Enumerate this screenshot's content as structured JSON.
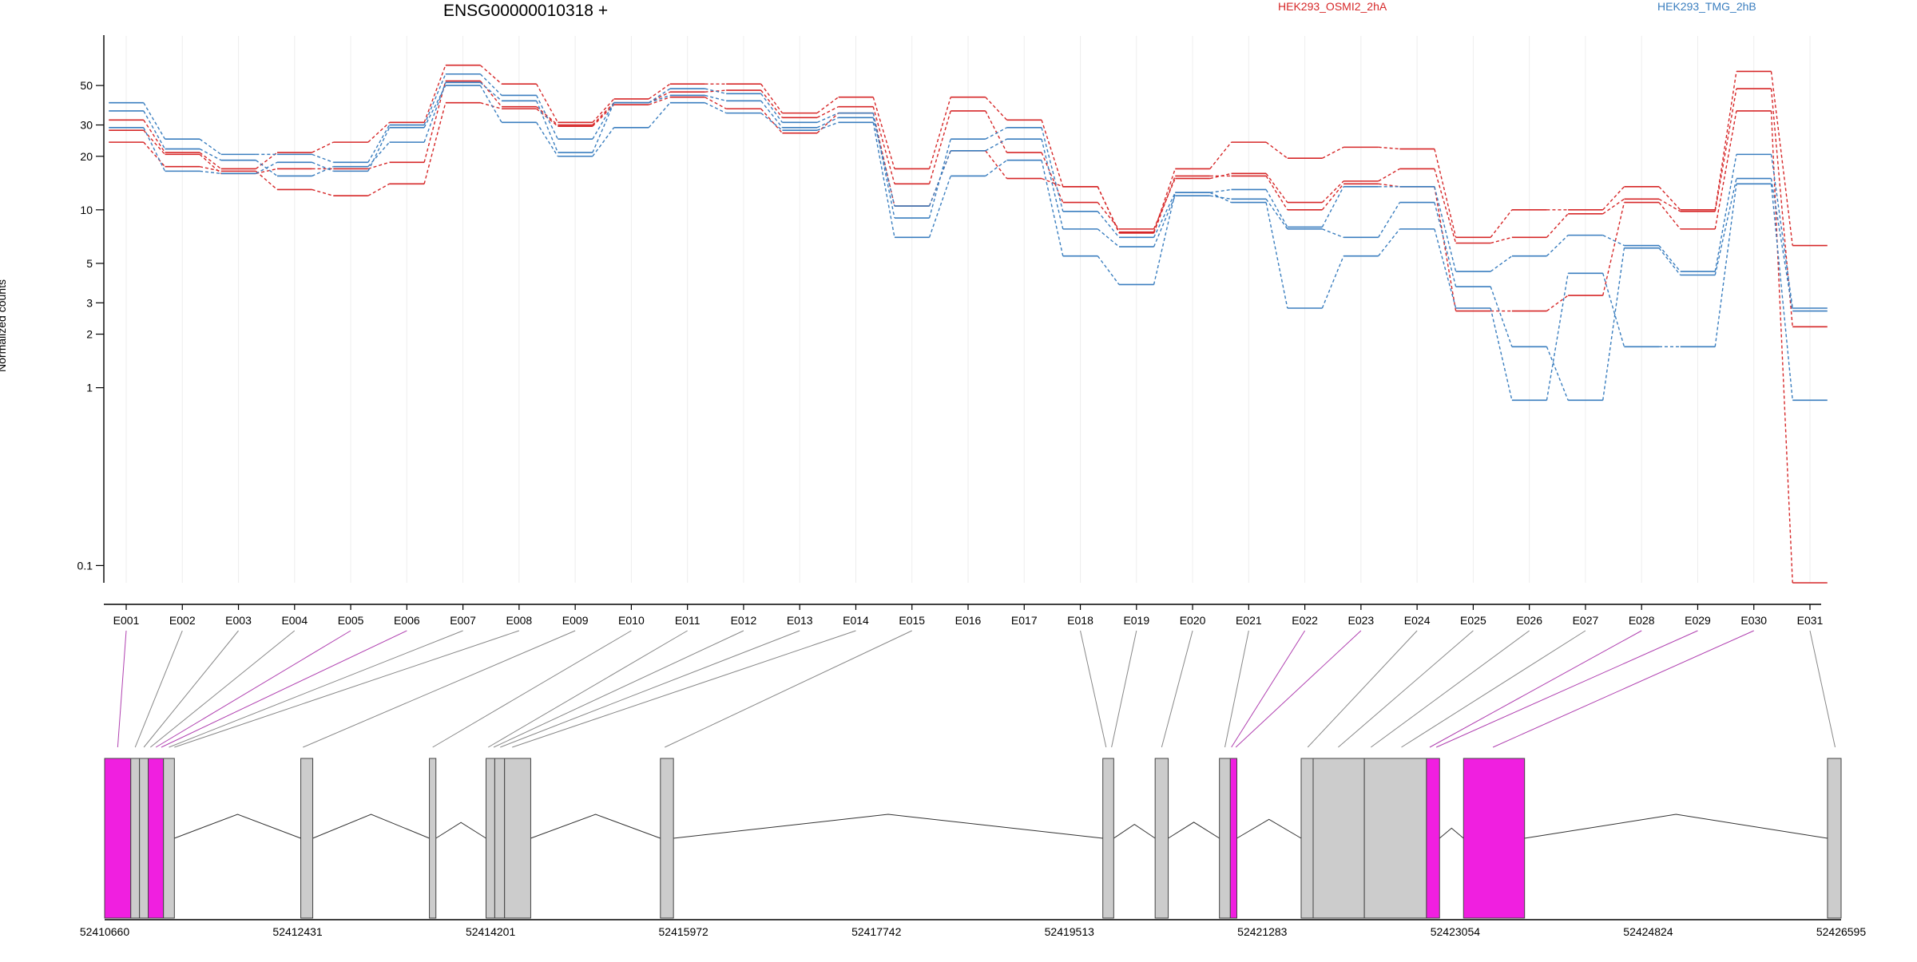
{
  "chart_data": {
    "type": "line",
    "title": "ENSG00000010318 +",
    "ylabel": "Normalized counts",
    "yscale": "log",
    "ylim": [
      0.08,
      95
    ],
    "yticks": [
      0.1,
      1,
      2,
      3,
      5,
      10,
      20,
      30,
      50
    ],
    "ytick_labels": [
      "0.1",
      "1",
      "2",
      "3",
      "5",
      "10",
      "20",
      "30",
      "50"
    ],
    "categories": [
      "E001",
      "E002",
      "E003",
      "E004",
      "E005",
      "E006",
      "E007",
      "E008",
      "E009",
      "E010",
      "E011",
      "E012",
      "E013",
      "E014",
      "E015",
      "E016",
      "E017",
      "E018",
      "E019",
      "E020",
      "E021",
      "E022",
      "E023",
      "E024",
      "E025",
      "E026",
      "E027",
      "E028",
      "E029",
      "E030",
      "E031"
    ],
    "legend": [
      {
        "label": "HEK293_OSMI2_2hA",
        "color": "#d62728"
      },
      {
        "label": "HEK293_TMG_2hB",
        "color": "#3a7ebf"
      }
    ],
    "series": [
      {
        "group": "HEK293_OSMI2_2hA",
        "color": "#d62728",
        "values": [
          32,
          21,
          17,
          21,
          24,
          31,
          65,
          51,
          31,
          42,
          51,
          51,
          35,
          43,
          17,
          43,
          32,
          13.5,
          7.5,
          17,
          24,
          19.5,
          22.5,
          22,
          7,
          10,
          10,
          13.5,
          10,
          60,
          6.3
        ]
      },
      {
        "group": "HEK293_OSMI2_2hA",
        "color": "#d62728",
        "values": [
          28,
          20.5,
          16,
          17,
          17,
          18.5,
          53,
          38,
          30,
          40,
          46,
          47,
          33,
          38,
          14,
          36,
          21,
          11,
          7.8,
          15,
          16,
          11,
          14.5,
          17,
          6.5,
          7,
          9.5,
          11.5,
          9.8,
          48,
          2.2
        ]
      },
      {
        "group": "HEK293_OSMI2_2hA",
        "color": "#d62728",
        "values": [
          24,
          17.5,
          16.5,
          13,
          12,
          14,
          40,
          37,
          29.5,
          39,
          43,
          37,
          27,
          35,
          10.5,
          21.5,
          15,
          13.5,
          7.4,
          15.5,
          15.5,
          10,
          14,
          13.5,
          2.7,
          2.7,
          3.3,
          11,
          7.8,
          36,
          0.08
        ]
      },
      {
        "group": "HEK293_TMG_2hB",
        "color": "#3a7ebf",
        "values": [
          40,
          25,
          20.5,
          20.5,
          18.5,
          30,
          58,
          44,
          25,
          40,
          48,
          45,
          31,
          35,
          9,
          25,
          29,
          9.8,
          7,
          12.5,
          13,
          8,
          13.5,
          13.5,
          4.5,
          5.5,
          7.2,
          6.3,
          4.5,
          20.5,
          2.8
        ]
      },
      {
        "group": "HEK293_TMG_2hB",
        "color": "#3a7ebf",
        "values": [
          36,
          22,
          19,
          15.5,
          17.5,
          24,
          52,
          41,
          21,
          40,
          44,
          41,
          29,
          33,
          10.5,
          21.5,
          25,
          7.8,
          6.2,
          12,
          11.5,
          7.8,
          7,
          11,
          3.7,
          1.7,
          0.85,
          6.1,
          4.3,
          15,
          2.7
        ]
      },
      {
        "group": "HEK293_TMG_2hB",
        "color": "#3a7ebf",
        "values": [
          29,
          16.5,
          16,
          18.5,
          16.5,
          29,
          50,
          31,
          20,
          29,
          40,
          35,
          28,
          31,
          7,
          15.5,
          19,
          5.5,
          3.8,
          12.5,
          11,
          2.8,
          5.5,
          7.8,
          2.8,
          0.85,
          4.4,
          1.7,
          1.7,
          14,
          0.85
        ]
      }
    ],
    "gene_model": {
      "coordinate_labels": [
        "52410660",
        "52412431",
        "52414201",
        "52415972",
        "52417742",
        "52419513",
        "52421283",
        "52423054",
        "52424824",
        "52426595"
      ],
      "coord_min": 52410660,
      "coord_max": 52426595,
      "exons": [
        {
          "start": 52410660,
          "end": 52410900,
          "color": "#f01fe0"
        },
        {
          "start": 52410900,
          "end": 52410980,
          "color": "#cccccc"
        },
        {
          "start": 52410980,
          "end": 52411060,
          "color": "#cccccc"
        },
        {
          "start": 52411060,
          "end": 52411200,
          "color": "#f01fe0"
        },
        {
          "start": 52411200,
          "end": 52411300,
          "color": "#cccccc"
        },
        {
          "start": 52412460,
          "end": 52412570,
          "color": "#cccccc"
        },
        {
          "start": 52413640,
          "end": 52413700,
          "color": "#cccccc"
        },
        {
          "start": 52414160,
          "end": 52414240,
          "color": "#cccccc"
        },
        {
          "start": 52414240,
          "end": 52414330,
          "color": "#cccccc"
        },
        {
          "start": 52414330,
          "end": 52414570,
          "color": "#cccccc"
        },
        {
          "start": 52415760,
          "end": 52415880,
          "color": "#cccccc"
        },
        {
          "start": 52419820,
          "end": 52419920,
          "color": "#cccccc"
        },
        {
          "start": 52420300,
          "end": 52420420,
          "color": "#cccccc"
        },
        {
          "start": 52420890,
          "end": 52420990,
          "color": "#cccccc"
        },
        {
          "start": 52420990,
          "end": 52421050,
          "color": "#f01fe0"
        },
        {
          "start": 52421640,
          "end": 52421750,
          "color": "#cccccc"
        },
        {
          "start": 52421750,
          "end": 52422220,
          "color": "#cccccc"
        },
        {
          "start": 52422220,
          "end": 52422790,
          "color": "#cccccc"
        },
        {
          "start": 52422790,
          "end": 52422910,
          "color": "#f01fe0"
        },
        {
          "start": 52423130,
          "end": 52423690,
          "color": "#f01fe0"
        },
        {
          "start": 52426470,
          "end": 52426595,
          "color": "#cccccc"
        }
      ],
      "exon_links": [
        {
          "bin": "E001",
          "coord": 52410780,
          "color": "#b040b0"
        },
        {
          "bin": "E002",
          "coord": 52410940,
          "color": "#888888"
        },
        {
          "bin": "E003",
          "coord": 52411020,
          "color": "#888888"
        },
        {
          "bin": "E004",
          "coord": 52411080,
          "color": "#888888"
        },
        {
          "bin": "E005",
          "coord": 52411130,
          "color": "#b040b0"
        },
        {
          "bin": "E006",
          "coord": 52411180,
          "color": "#b040b0"
        },
        {
          "bin": "E007",
          "coord": 52411250,
          "color": "#888888"
        },
        {
          "bin": "E008",
          "coord": 52411300,
          "color": "#888888"
        },
        {
          "bin": "E009",
          "coord": 52412480,
          "color": "#888888"
        },
        {
          "bin": "E010",
          "coord": 52413670,
          "color": "#888888"
        },
        {
          "bin": "E011",
          "coord": 52414180,
          "color": "#888888"
        },
        {
          "bin": "E012",
          "coord": 52414230,
          "color": "#888888"
        },
        {
          "bin": "E013",
          "coord": 52414290,
          "color": "#888888"
        },
        {
          "bin": "E014",
          "coord": 52414400,
          "color": "#888888"
        },
        {
          "bin": "E015",
          "coord": 52415800,
          "color": "#888888"
        },
        {
          "bin": "E018",
          "coord": 52419850,
          "color": "#888888"
        },
        {
          "bin": "E019",
          "coord": 52419900,
          "color": "#888888"
        },
        {
          "bin": "E020",
          "coord": 52420360,
          "color": "#888888"
        },
        {
          "bin": "E021",
          "coord": 52420940,
          "color": "#888888"
        },
        {
          "bin": "E022",
          "coord": 52421000,
          "color": "#b040b0"
        },
        {
          "bin": "E023",
          "coord": 52421040,
          "color": "#b040b0"
        },
        {
          "bin": "E024",
          "coord": 52421700,
          "color": "#888888"
        },
        {
          "bin": "E025",
          "coord": 52421980,
          "color": "#888888"
        },
        {
          "bin": "E026",
          "coord": 52422280,
          "color": "#888888"
        },
        {
          "bin": "E027",
          "coord": 52422560,
          "color": "#888888"
        },
        {
          "bin": "E028",
          "coord": 52422820,
          "color": "#b040b0"
        },
        {
          "bin": "E029",
          "coord": 52422880,
          "color": "#b040b0"
        },
        {
          "bin": "E030",
          "coord": 52423400,
          "color": "#b040b0"
        },
        {
          "bin": "E031",
          "coord": 52426540,
          "color": "#888888"
        }
      ]
    }
  }
}
